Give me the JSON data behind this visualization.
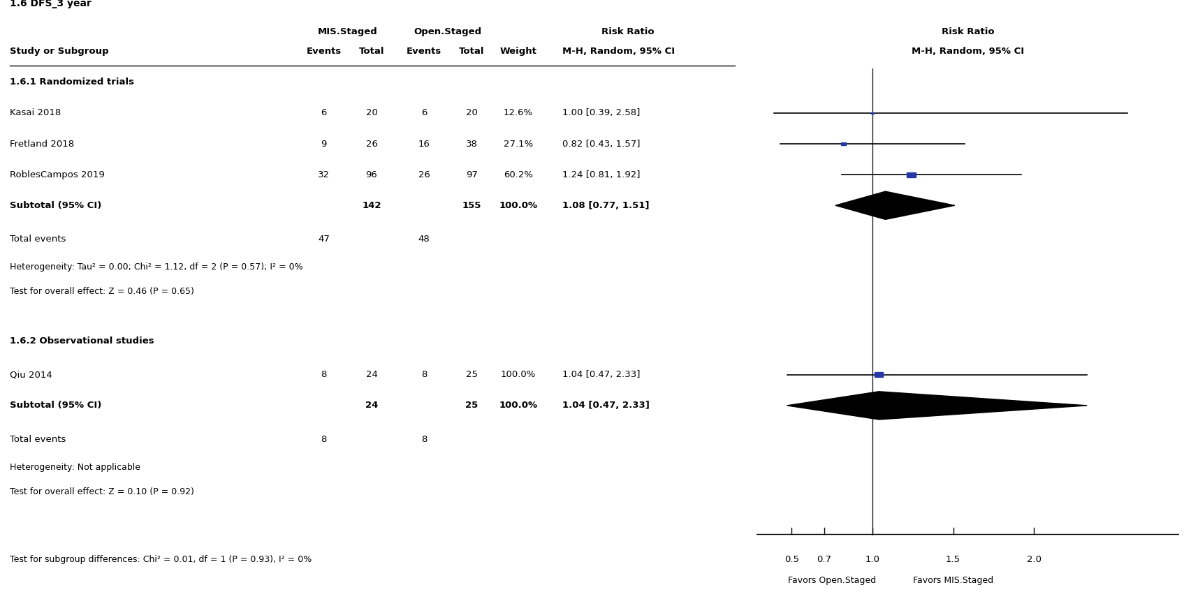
{
  "title": "1.6 DFS_3 year",
  "col_study": "Study or Subgroup",
  "col_mis_header": "MIS.Staged",
  "col_open_header": "Open.Staged",
  "col_rr_header": "Risk Ratio",
  "col_events": "Events",
  "col_total": "Total",
  "col_weight": "Weight",
  "col_rr_sub": "M-H, Random, 95% CI",
  "subgroups": [
    {
      "name": "1.6.1 Randomized trials",
      "studies": [
        {
          "study": "Kasai 2018",
          "mis_events": 6,
          "mis_total": 20,
          "open_events": 6,
          "open_total": 20,
          "weight": "12.6%",
          "rr": 1.0,
          "ci_lo": 0.39,
          "ci_hi": 2.58,
          "rr_text": "1.00 [0.39, 2.58]",
          "weight_val": 12.6
        },
        {
          "study": "Fretland 2018",
          "mis_events": 9,
          "mis_total": 26,
          "open_events": 16,
          "open_total": 38,
          "weight": "27.1%",
          "rr": 0.82,
          "ci_lo": 0.43,
          "ci_hi": 1.57,
          "rr_text": "0.82 [0.43, 1.57]",
          "weight_val": 27.1
        },
        {
          "study": "RoblesCampos 2019",
          "mis_events": 32,
          "mis_total": 96,
          "open_events": 26,
          "open_total": 97,
          "weight": "60.2%",
          "rr": 1.24,
          "ci_lo": 0.81,
          "ci_hi": 1.92,
          "rr_text": "1.24 [0.81, 1.92]",
          "weight_val": 60.2
        }
      ],
      "subtotal": {
        "label": "Subtotal (95% CI)",
        "mis_total": "142",
        "open_total": "155",
        "weight": "100.0%",
        "rr": 1.08,
        "ci_lo": 0.77,
        "ci_hi": 1.51,
        "rr_text": "1.08 [0.77, 1.51]"
      },
      "total_events_mis": 47,
      "total_events_open": 48,
      "heterogeneity": "Heterogeneity: Tau² = 0.00; Chi² = 1.12, df = 2 (P = 0.57); I² = 0%",
      "overall_effect": "Test for overall effect: Z = 0.46 (P = 0.65)"
    },
    {
      "name": "1.6.2 Observational studies",
      "studies": [
        {
          "study": "Qiu 2014",
          "mis_events": 8,
          "mis_total": 24,
          "open_events": 8,
          "open_total": 25,
          "weight": "100.0%",
          "rr": 1.04,
          "ci_lo": 0.47,
          "ci_hi": 2.33,
          "rr_text": "1.04 [0.47, 2.33]",
          "weight_val": 100.0
        }
      ],
      "subtotal": {
        "label": "Subtotal (95% CI)",
        "mis_total": "24",
        "open_total": "25",
        "weight": "100.0%",
        "rr": 1.04,
        "ci_lo": 0.47,
        "ci_hi": 2.33,
        "rr_text": "1.04 [0.47, 2.33]"
      },
      "total_events_mis": 8,
      "total_events_open": 8,
      "heterogeneity": "Heterogeneity: Not applicable",
      "overall_effect": "Test for overall effect: Z = 0.10 (P = 0.92)"
    }
  ],
  "subgroup_diff": "Test for subgroup differences: Chi² = 0.01, df = 1 (P = 0.93), I² = 0%",
  "x_ticks": [
    0.5,
    0.7,
    1.0,
    1.5,
    2.0
  ],
  "x_lim": [
    0.28,
    2.9
  ],
  "x_label_left": "Favors Open.Staged",
  "x_label_right": "Favors MIS.Staged",
  "square_color": "#2438a8",
  "diamond_color": "#000000",
  "line_color": "#000000",
  "bg_color": "#ffffff",
  "fontsize": 9.5
}
